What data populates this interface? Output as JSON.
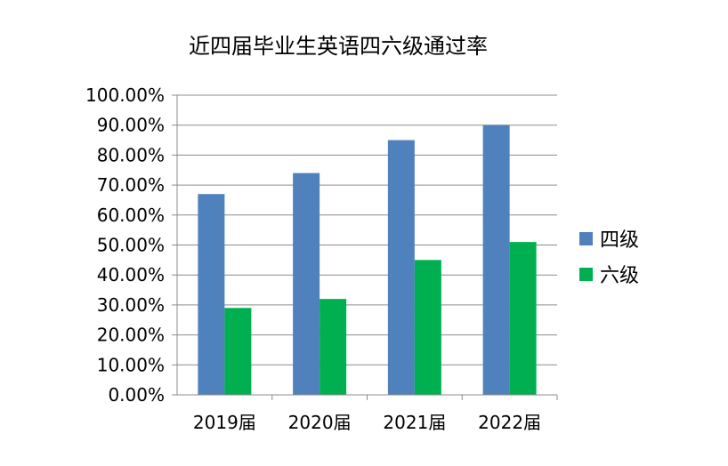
{
  "chart_data": {
    "type": "bar",
    "title": "近四届毕业生英语四六级通过率",
    "categories": [
      "2019届",
      "2020届",
      "2021届",
      "2022届"
    ],
    "series": [
      {
        "name": "四级",
        "values": [
          0.67,
          0.74,
          0.85,
          0.9
        ],
        "color": "#4f81bd"
      },
      {
        "name": "六级",
        "values": [
          0.29,
          0.32,
          0.45,
          0.51
        ],
        "color": "#00b050"
      }
    ],
    "ylim": [
      0,
      1.0
    ],
    "ytick_step": 0.1,
    "ytick_labels": [
      "0.00%",
      "10.00%",
      "20.00%",
      "30.00%",
      "40.00%",
      "50.00%",
      "60.00%",
      "70.00%",
      "80.00%",
      "90.00%",
      "100.00%"
    ],
    "grid": true,
    "legend": "right"
  }
}
